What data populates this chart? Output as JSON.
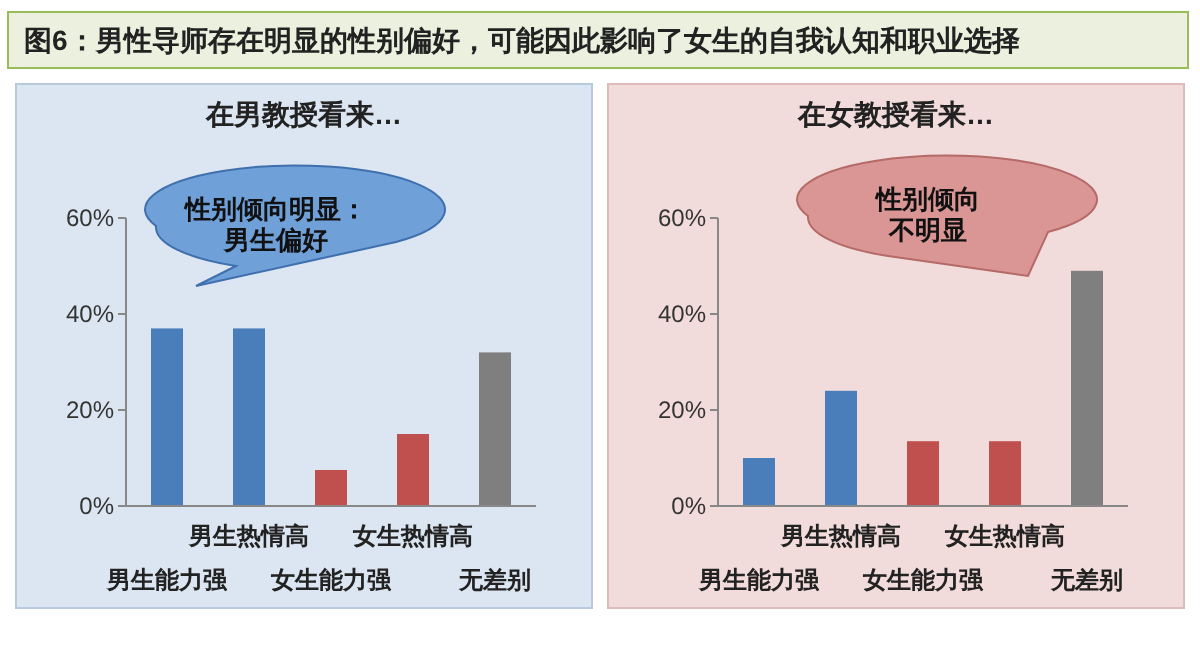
{
  "chart_data": [
    {
      "type": "bar",
      "title": "在男教授看来…",
      "annotations": [
        "图6：男性导师存在明显的性别偏好，可能因此影响了女生的自我认知和职业选择",
        "性别倾向明显：",
        "男生偏好"
      ],
      "categories": [
        "男生能力强",
        "男生热情高",
        "女生能力强",
        "女生热情高",
        "无差别"
      ],
      "values": [
        37,
        37,
        7.5,
        15,
        32
      ],
      "colors": [
        "#4a7ebb",
        "#4a7ebb",
        "#c0504d",
        "#c0504d",
        "#7f7f7f"
      ],
      "ylim": [
        0,
        60
      ],
      "yticks": [
        {
          "value": 0,
          "label": "0%"
        },
        {
          "value": 20,
          "label": "20%"
        },
        {
          "value": 40,
          "label": "40%"
        },
        {
          "value": 60,
          "label": "60%"
        }
      ]
    },
    {
      "type": "bar",
      "title": "在女教授看来…",
      "annotations": [
        "性别倾向",
        "不明显"
      ],
      "categories": [
        "男生能力强",
        "男生热情高",
        "女生能力强",
        "女生热情高",
        "无差别"
      ],
      "values": [
        10,
        24,
        13.5,
        13.5,
        49
      ],
      "colors": [
        "#4a7ebb",
        "#4a7ebb",
        "#c0504d",
        "#c0504d",
        "#7f7f7f"
      ],
      "ylim": [
        0,
        60
      ],
      "yticks": [
        {
          "value": 0,
          "label": "0%"
        },
        {
          "value": 20,
          "label": "20%"
        },
        {
          "value": 40,
          "label": "40%"
        },
        {
          "value": 60,
          "label": "60%"
        }
      ]
    }
  ]
}
